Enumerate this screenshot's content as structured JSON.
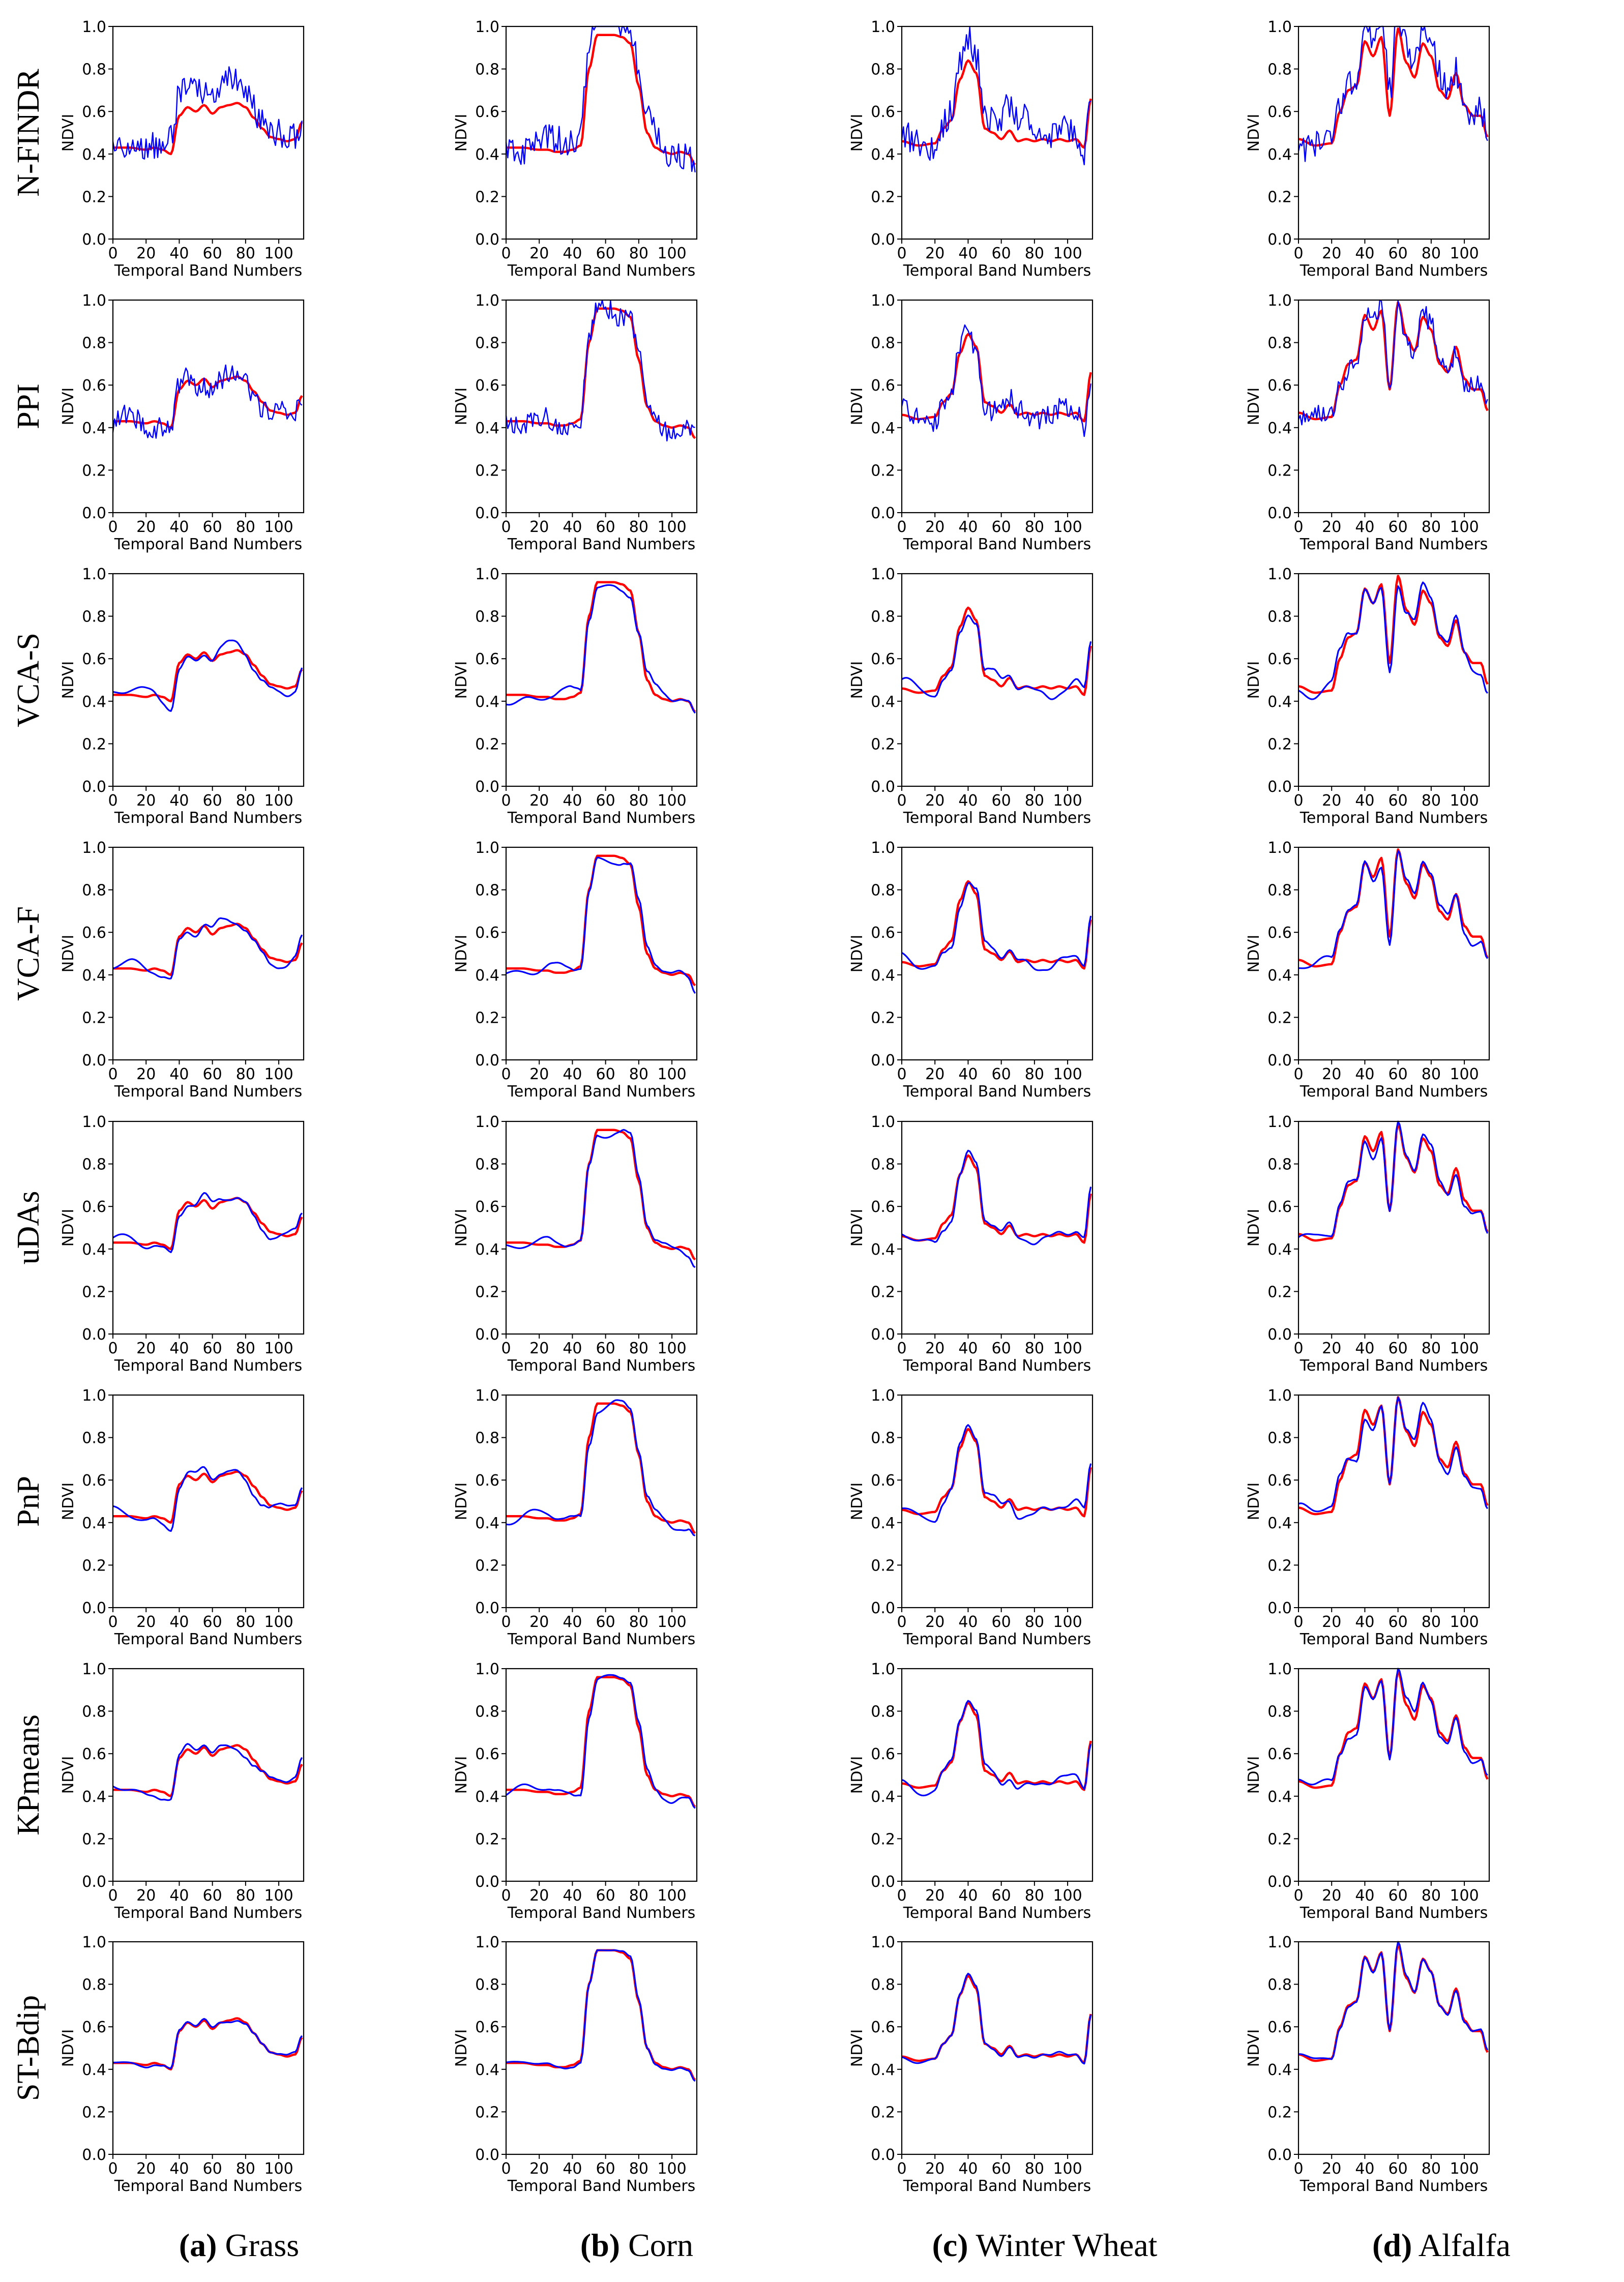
{
  "chart_data": {
    "type": "line",
    "grid": false,
    "panel_layout": {
      "rows": 8,
      "columns": 4
    },
    "xlabel": "Temporal Band Numbers",
    "ylabel": "NDVI",
    "xlim": [
      0,
      115
    ],
    "ylim": [
      0.0,
      1.0
    ],
    "xticks": [
      "0",
      "20",
      "40",
      "60",
      "80",
      "100"
    ],
    "yticks": [
      "0.0",
      "0.2",
      "0.4",
      "0.6",
      "0.8",
      "1.0"
    ],
    "reference_color": "#ff0000",
    "estimate_color": "#0000ff",
    "methods": [
      "N-FINDR",
      "PPI",
      "VCA-S",
      "VCA-F",
      "uDAs",
      "PnP",
      "KPmeans",
      "ST-Bdip"
    ],
    "columns": [
      {
        "letter": "(a)",
        "name": "Grass"
      },
      {
        "letter": "(b)",
        "name": "Corn"
      },
      {
        "letter": "(c)",
        "name": "Winter Wheat"
      },
      {
        "letter": "(d)",
        "name": "Alfalfa"
      }
    ],
    "reference_curves": {
      "x": [
        0,
        10,
        20,
        25,
        30,
        35,
        40,
        45,
        50,
        55,
        60,
        65,
        70,
        75,
        80,
        85,
        90,
        95,
        100,
        105,
        110,
        114
      ],
      "Grass": [
        0.43,
        0.43,
        0.42,
        0.43,
        0.42,
        0.4,
        0.58,
        0.62,
        0.6,
        0.63,
        0.59,
        0.62,
        0.63,
        0.64,
        0.62,
        0.57,
        0.52,
        0.48,
        0.47,
        0.46,
        0.47,
        0.55
      ],
      "Corn": [
        0.43,
        0.43,
        0.42,
        0.42,
        0.41,
        0.41,
        0.42,
        0.44,
        0.8,
        0.96,
        0.96,
        0.96,
        0.95,
        0.92,
        0.72,
        0.5,
        0.43,
        0.41,
        0.4,
        0.41,
        0.4,
        0.35
      ],
      "Winter Wheat": [
        0.46,
        0.44,
        0.45,
        0.52,
        0.56,
        0.75,
        0.84,
        0.78,
        0.52,
        0.5,
        0.47,
        0.51,
        0.46,
        0.47,
        0.46,
        0.47,
        0.46,
        0.47,
        0.46,
        0.47,
        0.43,
        0.66
      ],
      "Alfalfa": [
        0.47,
        0.44,
        0.45,
        0.6,
        0.7,
        0.72,
        0.93,
        0.86,
        0.95,
        0.58,
        0.99,
        0.83,
        0.76,
        0.92,
        0.86,
        0.7,
        0.66,
        0.78,
        0.63,
        0.58,
        0.58,
        0.48
      ]
    },
    "estimate_style": {
      "N-FINDR": {
        "mode": "noisy",
        "amp": 0.07,
        "offset": 0.1
      },
      "PPI": {
        "mode": "noisy",
        "amp": 0.05,
        "offset": 0.0
      },
      "VCA-S": {
        "mode": "smooth",
        "amp": 0.035,
        "offset": 0.0
      },
      "VCA-F": {
        "mode": "smooth",
        "amp": 0.03,
        "offset": 0.0
      },
      "uDAs": {
        "mode": "smooth",
        "amp": 0.025,
        "offset": 0.0
      },
      "PnP": {
        "mode": "smooth",
        "amp": 0.03,
        "offset": 0.0
      },
      "KPmeans": {
        "mode": "smooth",
        "amp": 0.025,
        "offset": 0.0
      },
      "ST-Bdip": {
        "mode": "smooth",
        "amp": 0.008,
        "offset": 0.0
      }
    }
  }
}
